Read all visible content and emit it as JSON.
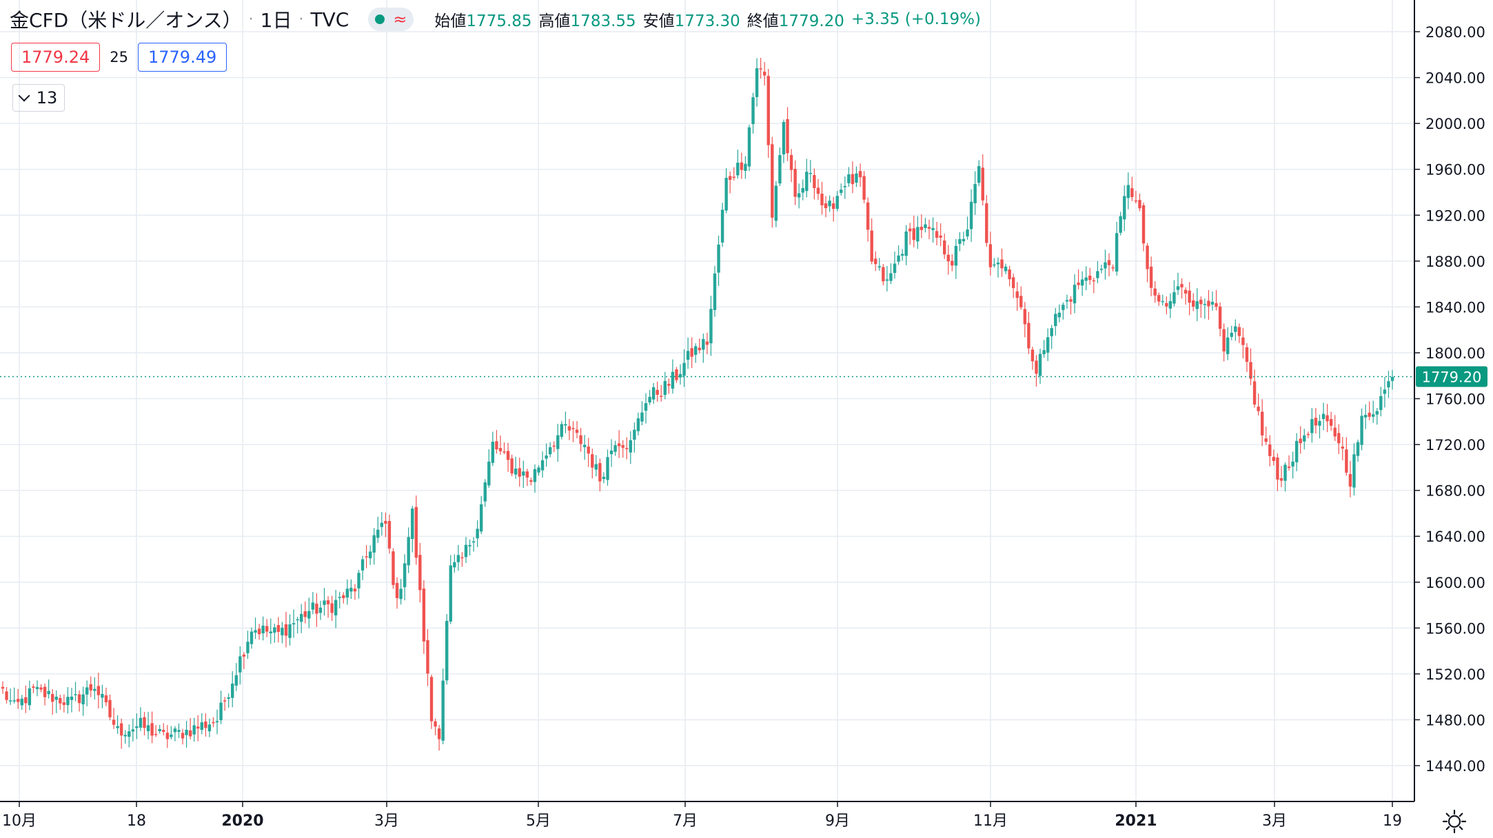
{
  "header": {
    "symbol": "金CFD（米ドル／オンス）",
    "timeframe": "1日",
    "exchange": "TVC",
    "wave_glyph": "≈",
    "open_label": "始値",
    "open_value": "1775.85",
    "high_label": "高値",
    "high_value": "1783.55",
    "low_label": "安値",
    "low_value": "1773.30",
    "close_label": "終値",
    "close_value": "1779.20",
    "change": "+3.35 (+0.19%)"
  },
  "bid_ask": {
    "bid": "1779.24",
    "spread": "25",
    "ask": "1779.49"
  },
  "collapse_button": {
    "count": "13"
  },
  "colors": {
    "up": "#26a69a",
    "down": "#ef5350",
    "grid": "#e6ecf2",
    "axis": "#131722",
    "price_tag": "#089981"
  },
  "chart_data": {
    "type": "candlestick",
    "ylim": [
      1410,
      2100
    ],
    "y_ticks": [
      1440,
      1480,
      1520,
      1560,
      1600,
      1640,
      1680,
      1720,
      1760,
      1800,
      1840,
      1880,
      1920,
      1960,
      2000,
      2040,
      2080
    ],
    "x_labels": [
      "10月",
      "18",
      "2020",
      "3月",
      "5月",
      "7月",
      "9月",
      "11月",
      "2021",
      "3月",
      "19"
    ],
    "last_price": 1779.2,
    "last_price_label": "1779.20",
    "grid": true,
    "keyframes": [
      {
        "i": 0,
        "p": 1505
      },
      {
        "i": 3,
        "p": 1490
      },
      {
        "i": 8,
        "p": 1505
      },
      {
        "i": 18,
        "p": 1495
      },
      {
        "i": 24,
        "p": 1510
      },
      {
        "i": 30,
        "p": 1470
      },
      {
        "i": 36,
        "p": 1475
      },
      {
        "i": 42,
        "p": 1465
      },
      {
        "i": 48,
        "p": 1470
      },
      {
        "i": 56,
        "p": 1480
      },
      {
        "i": 60,
        "p": 1515
      },
      {
        "i": 65,
        "p": 1560
      },
      {
        "i": 72,
        "p": 1555
      },
      {
        "i": 80,
        "p": 1575
      },
      {
        "i": 86,
        "p": 1580
      },
      {
        "i": 92,
        "p": 1595
      },
      {
        "i": 97,
        "p": 1640
      },
      {
        "i": 100,
        "p": 1650
      },
      {
        "i": 103,
        "p": 1580
      },
      {
        "i": 107,
        "p": 1660
      },
      {
        "i": 112,
        "p": 1480
      },
      {
        "i": 114,
        "p": 1470
      },
      {
        "i": 117,
        "p": 1610
      },
      {
        "i": 120,
        "p": 1620
      },
      {
        "i": 124,
        "p": 1650
      },
      {
        "i": 128,
        "p": 1720
      },
      {
        "i": 133,
        "p": 1700
      },
      {
        "i": 138,
        "p": 1690
      },
      {
        "i": 143,
        "p": 1720
      },
      {
        "i": 147,
        "p": 1735
      },
      {
        "i": 152,
        "p": 1720
      },
      {
        "i": 156,
        "p": 1690
      },
      {
        "i": 160,
        "p": 1725
      },
      {
        "i": 164,
        "p": 1720
      },
      {
        "i": 168,
        "p": 1760
      },
      {
        "i": 173,
        "p": 1770
      },
      {
        "i": 176,
        "p": 1780
      },
      {
        "i": 180,
        "p": 1800
      },
      {
        "i": 184,
        "p": 1810
      },
      {
        "i": 189,
        "p": 1950
      },
      {
        "i": 194,
        "p": 1970
      },
      {
        "i": 197,
        "p": 2050
      },
      {
        "i": 199,
        "p": 2040
      },
      {
        "i": 201,
        "p": 1920
      },
      {
        "i": 204,
        "p": 2000
      },
      {
        "i": 207,
        "p": 1930
      },
      {
        "i": 211,
        "p": 1960
      },
      {
        "i": 215,
        "p": 1920
      },
      {
        "i": 220,
        "p": 1950
      },
      {
        "i": 224,
        "p": 1950
      },
      {
        "i": 227,
        "p": 1880
      },
      {
        "i": 231,
        "p": 1860
      },
      {
        "i": 236,
        "p": 1900
      },
      {
        "i": 240,
        "p": 1910
      },
      {
        "i": 244,
        "p": 1900
      },
      {
        "i": 248,
        "p": 1880
      },
      {
        "i": 252,
        "p": 1910
      },
      {
        "i": 255,
        "p": 1960
      },
      {
        "i": 258,
        "p": 1870
      },
      {
        "i": 262,
        "p": 1880
      },
      {
        "i": 266,
        "p": 1840
      },
      {
        "i": 270,
        "p": 1780
      },
      {
        "i": 273,
        "p": 1820
      },
      {
        "i": 277,
        "p": 1840
      },
      {
        "i": 281,
        "p": 1860
      },
      {
        "i": 286,
        "p": 1870
      },
      {
        "i": 290,
        "p": 1880
      },
      {
        "i": 294,
        "p": 1950
      },
      {
        "i": 297,
        "p": 1920
      },
      {
        "i": 300,
        "p": 1850
      },
      {
        "i": 304,
        "p": 1840
      },
      {
        "i": 308,
        "p": 1860
      },
      {
        "i": 312,
        "p": 1840
      },
      {
        "i": 316,
        "p": 1850
      },
      {
        "i": 319,
        "p": 1800
      },
      {
        "i": 322,
        "p": 1820
      },
      {
        "i": 325,
        "p": 1790
      },
      {
        "i": 329,
        "p": 1730
      },
      {
        "i": 333,
        "p": 1690
      },
      {
        "i": 337,
        "p": 1710
      },
      {
        "i": 341,
        "p": 1735
      },
      {
        "i": 345,
        "p": 1740
      },
      {
        "i": 349,
        "p": 1725
      },
      {
        "i": 352,
        "p": 1690
      },
      {
        "i": 355,
        "p": 1740
      },
      {
        "i": 359,
        "p": 1755
      },
      {
        "i": 363,
        "p": 1779
      }
    ]
  }
}
